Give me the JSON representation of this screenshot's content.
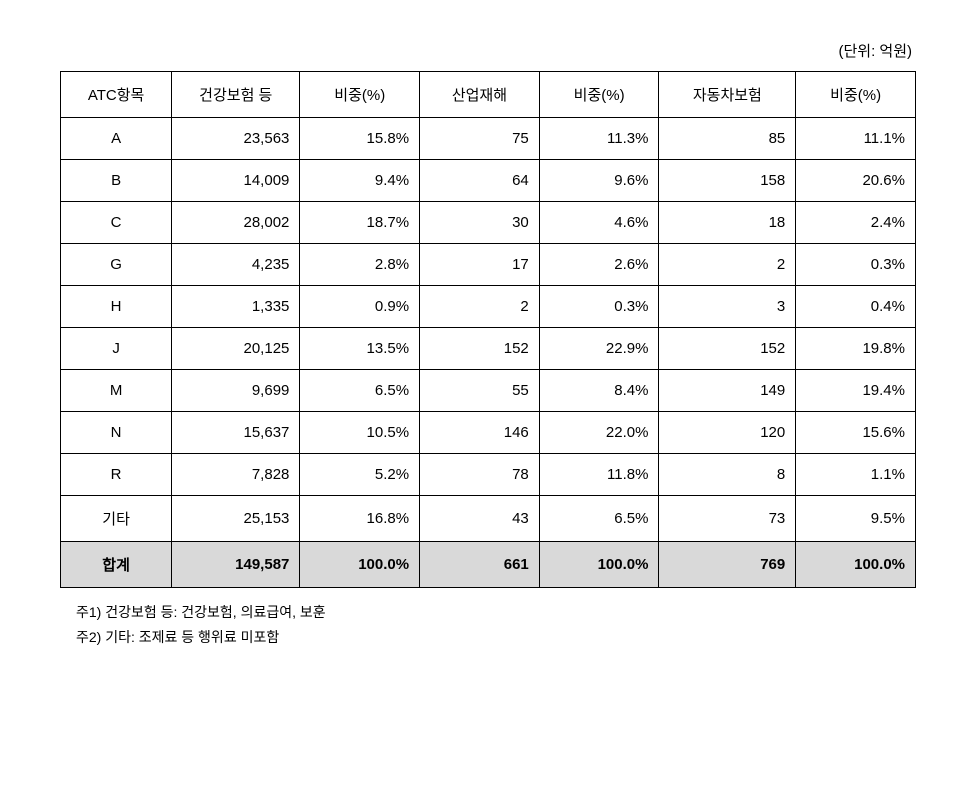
{
  "unit_label": "(단위: 억원)",
  "table": {
    "headers": [
      "ATC항목",
      "건강보험 등",
      "비중(%)",
      "산업재해",
      "비중(%)",
      "자동차보험",
      "비중(%)"
    ],
    "column_widths": [
      "13%",
      "15%",
      "14%",
      "14%",
      "14%",
      "16%",
      "14%"
    ],
    "rows": [
      {
        "label": "A",
        "cells": [
          "23,563",
          "15.8%",
          "75",
          "11.3%",
          "85",
          "11.1%"
        ]
      },
      {
        "label": "B",
        "cells": [
          "14,009",
          "9.4%",
          "64",
          "9.6%",
          "158",
          "20.6%"
        ]
      },
      {
        "label": "C",
        "cells": [
          "28,002",
          "18.7%",
          "30",
          "4.6%",
          "18",
          "2.4%"
        ]
      },
      {
        "label": "G",
        "cells": [
          "4,235",
          "2.8%",
          "17",
          "2.6%",
          "2",
          "0.3%"
        ]
      },
      {
        "label": "H",
        "cells": [
          "1,335",
          "0.9%",
          "2",
          "0.3%",
          "3",
          "0.4%"
        ]
      },
      {
        "label": "J",
        "cells": [
          "20,125",
          "13.5%",
          "152",
          "22.9%",
          "152",
          "19.8%"
        ]
      },
      {
        "label": "M",
        "cells": [
          "9,699",
          "6.5%",
          "55",
          "8.4%",
          "149",
          "19.4%"
        ]
      },
      {
        "label": "N",
        "cells": [
          "15,637",
          "10.5%",
          "146",
          "22.0%",
          "120",
          "15.6%"
        ]
      },
      {
        "label": "R",
        "cells": [
          "7,828",
          "5.2%",
          "78",
          "11.8%",
          "8",
          "1.1%"
        ]
      },
      {
        "label": "기타",
        "cells": [
          "25,153",
          "16.8%",
          "43",
          "6.5%",
          "73",
          "9.5%"
        ]
      }
    ],
    "total_row": {
      "label": "합계",
      "cells": [
        "149,587",
        "100.0%",
        "661",
        "100.0%",
        "769",
        "100.0%"
      ]
    }
  },
  "footnotes": [
    "주1) 건강보험 등: 건강보험, 의료급여, 보훈",
    "주2) 기타: 조제료 등 행위료 미포함"
  ],
  "styling": {
    "border_color": "#000000",
    "total_row_bg": "#d9d9d9",
    "background_color": "#ffffff",
    "text_color": "#000000",
    "header_fontsize": 15,
    "cell_fontsize": 15,
    "footnote_fontsize": 14
  }
}
